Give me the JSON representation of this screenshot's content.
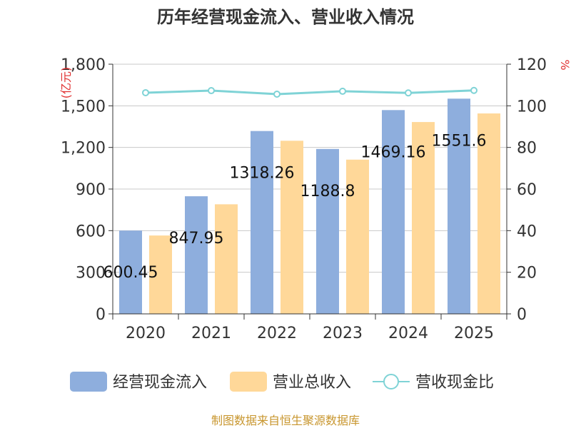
{
  "chart_data": {
    "type": "bar+line",
    "title": "历年经营现金流入、营业收入情况",
    "categories": [
      "2020",
      "2021",
      "2022",
      "2023",
      "2024",
      "2025"
    ],
    "series": [
      {
        "name": "经营现金流入",
        "type": "bar",
        "axis": "left",
        "color": "#8eaedd",
        "values": [
          600.45,
          847.95,
          1318.26,
          1188.8,
          1469.16,
          1551.6
        ],
        "labels": [
          "600.45",
          "847.95",
          "1318.26",
          "1188.8",
          "1469.16",
          "1551.6"
        ]
      },
      {
        "name": "营业总收入",
        "type": "bar",
        "axis": "left",
        "color": "#ffd899",
        "values": [
          565,
          790,
          1248,
          1112,
          1383,
          1445
        ]
      },
      {
        "name": "营收现金比",
        "type": "line",
        "axis": "right",
        "color": "#7fd3d6",
        "values": [
          106.3,
          107.3,
          105.6,
          107.0,
          106.2,
          107.4
        ]
      }
    ],
    "y_left": {
      "label": "(亿元)",
      "min": 0,
      "max": 1800,
      "ticks": [
        0,
        300,
        600,
        900,
        1200,
        1500,
        1800
      ],
      "tick_labels": [
        "0",
        "300",
        "600",
        "900",
        "1,200",
        "1,500",
        "1,800"
      ]
    },
    "y_right": {
      "label": "%",
      "min": 0,
      "max": 120,
      "ticks": [
        0,
        20,
        40,
        60,
        80,
        100,
        120
      ],
      "tick_labels": [
        "0",
        "20",
        "40",
        "60",
        "80",
        "100",
        "120"
      ]
    },
    "grid": true,
    "legend_position": "bottom"
  },
  "source_note": "制图数据来自恒生聚源数据库",
  "colors": {
    "axis": "#333333",
    "grid": "#c8c8c8",
    "unit_label": "#e03030",
    "source_note": "#c8962e"
  }
}
